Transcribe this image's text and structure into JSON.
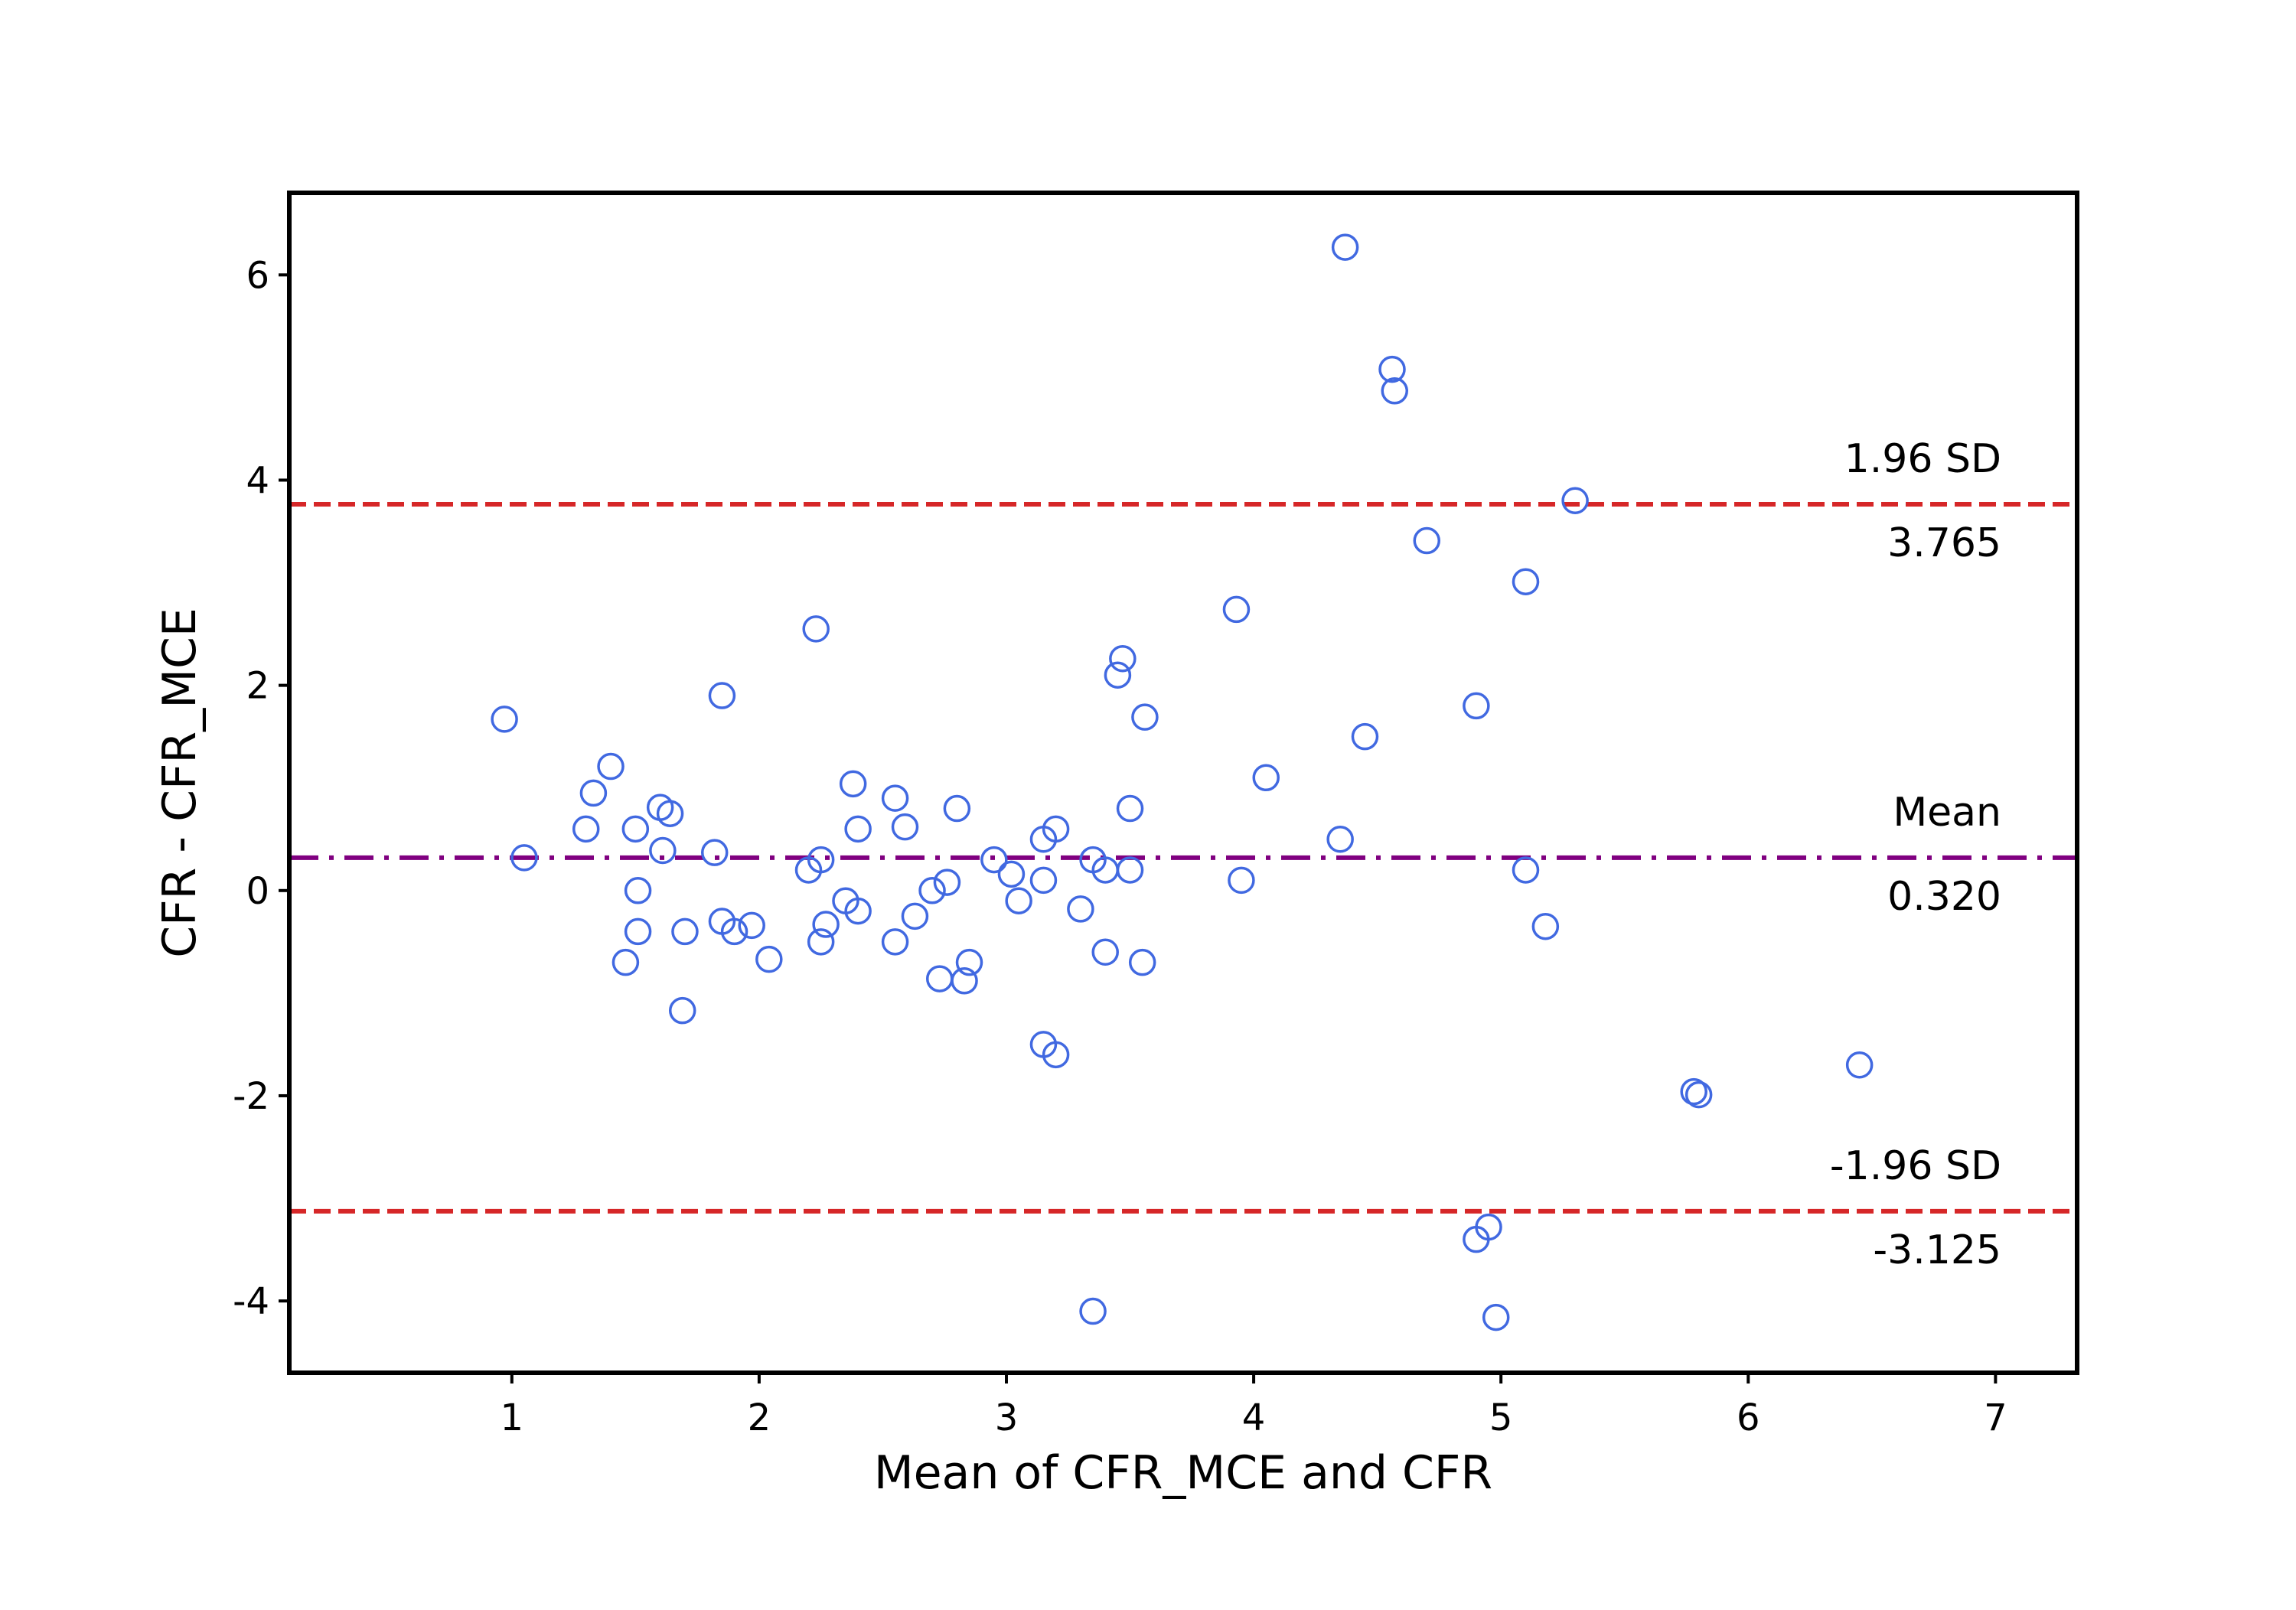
{
  "chart_data": {
    "type": "scatter",
    "title": "",
    "xlabel": "Mean of CFR_MCE and CFR",
    "ylabel": "CFR - CFR_MCE",
    "xlim": [
      0.1,
      7.33
    ],
    "ylim": [
      -4.7,
      6.8
    ],
    "x_ticks": [
      1,
      2,
      3,
      4,
      5,
      6,
      7
    ],
    "y_ticks": [
      -4,
      -2,
      0,
      2,
      4,
      6
    ],
    "grid": false,
    "legend": "none",
    "series": [
      {
        "color": "#4169e1",
        "marker": "open-circle",
        "points": [
          [
            0.97,
            1.67
          ],
          [
            1.05,
            0.32
          ],
          [
            1.3,
            0.6
          ],
          [
            1.33,
            0.95
          ],
          [
            1.4,
            1.21
          ],
          [
            1.46,
            -0.7
          ],
          [
            1.5,
            0.6
          ],
          [
            1.51,
            0.0
          ],
          [
            1.51,
            -0.4
          ],
          [
            1.6,
            0.81
          ],
          [
            1.61,
            0.39
          ],
          [
            1.64,
            0.75
          ],
          [
            1.69,
            -1.17
          ],
          [
            1.7,
            -0.4
          ],
          [
            1.82,
            0.37
          ],
          [
            1.85,
            1.9
          ],
          [
            1.85,
            -0.3
          ],
          [
            1.9,
            -0.4
          ],
          [
            1.97,
            -0.34
          ],
          [
            2.04,
            -0.67
          ],
          [
            2.2,
            0.2
          ],
          [
            2.23,
            2.55
          ],
          [
            2.25,
            0.3
          ],
          [
            2.25,
            -0.5
          ],
          [
            2.27,
            -0.33
          ],
          [
            2.35,
            -0.1
          ],
          [
            2.38,
            1.04
          ],
          [
            2.4,
            0.6
          ],
          [
            2.4,
            -0.2
          ],
          [
            2.55,
            0.9
          ],
          [
            2.55,
            -0.5
          ],
          [
            2.59,
            0.62
          ],
          [
            2.63,
            -0.25
          ],
          [
            2.7,
            0.0
          ],
          [
            2.73,
            -0.86
          ],
          [
            2.76,
            0.08
          ],
          [
            2.8,
            0.8
          ],
          [
            2.83,
            -0.88
          ],
          [
            2.85,
            -0.7
          ],
          [
            2.95,
            0.3
          ],
          [
            3.02,
            0.16
          ],
          [
            3.05,
            -0.1
          ],
          [
            3.15,
            0.5
          ],
          [
            3.15,
            0.1
          ],
          [
            3.15,
            -1.5
          ],
          [
            3.2,
            0.6
          ],
          [
            3.2,
            -1.6
          ],
          [
            3.3,
            -0.18
          ],
          [
            3.35,
            0.3
          ],
          [
            3.35,
            -4.1
          ],
          [
            3.4,
            0.2
          ],
          [
            3.4,
            -0.6
          ],
          [
            3.45,
            2.1
          ],
          [
            3.47,
            2.26
          ],
          [
            3.5,
            0.8
          ],
          [
            3.5,
            0.2
          ],
          [
            3.55,
            -0.7
          ],
          [
            3.56,
            1.69
          ],
          [
            3.93,
            2.74
          ],
          [
            3.95,
            0.1
          ],
          [
            4.05,
            1.1
          ],
          [
            4.35,
            0.5
          ],
          [
            4.37,
            6.27
          ],
          [
            4.45,
            1.5
          ],
          [
            4.56,
            5.08
          ],
          [
            4.57,
            4.87
          ],
          [
            4.7,
            3.41
          ],
          [
            4.9,
            1.8
          ],
          [
            4.9,
            -3.4
          ],
          [
            4.95,
            -3.28
          ],
          [
            4.98,
            -4.16
          ],
          [
            5.1,
            3.01
          ],
          [
            5.1,
            0.2
          ],
          [
            5.18,
            -0.35
          ],
          [
            5.3,
            3.8
          ],
          [
            5.78,
            -1.96
          ],
          [
            5.8,
            -1.99
          ],
          [
            6.45,
            -1.7
          ]
        ]
      }
    ],
    "reference_lines": [
      {
        "y": 3.765,
        "style": "dashed",
        "color": "#d62728",
        "label_above": "1.96 SD",
        "label_below": "3.765"
      },
      {
        "y": 0.32,
        "style": "dashdot",
        "color": "#800080",
        "label_above": "Mean",
        "label_below": "0.320"
      },
      {
        "y": -3.125,
        "style": "dashed",
        "color": "#d62728",
        "label_above": "-1.96 SD",
        "label_below": "-3.125"
      }
    ]
  }
}
